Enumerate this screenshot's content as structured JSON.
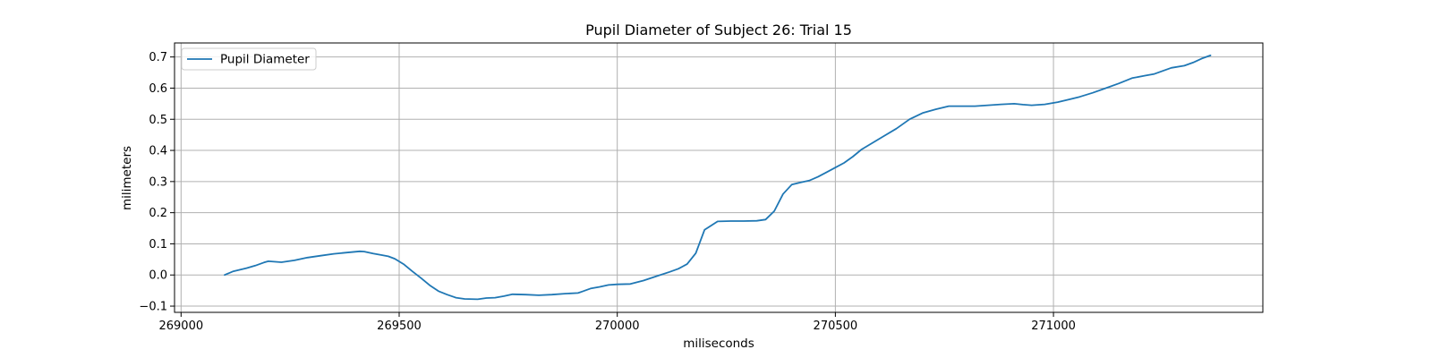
{
  "chart_data": {
    "type": "line",
    "title": "Pupil Diameter of Subject 26: Trial 15",
    "xlabel": "miliseconds",
    "ylabel": "milimeters",
    "xlim": [
      268985,
      271480
    ],
    "ylim": [
      -0.12,
      0.745
    ],
    "xticks": [
      269000,
      269500,
      270000,
      270500,
      271000
    ],
    "yticks": [
      -0.1,
      0.0,
      0.1,
      0.2,
      0.3,
      0.4,
      0.5,
      0.6,
      0.7
    ],
    "ytick_labels": [
      "−0.1",
      "0.0",
      "0.1",
      "0.2",
      "0.3",
      "0.4",
      "0.5",
      "0.6",
      "0.7"
    ],
    "grid": true,
    "legend_position": "upper-left",
    "colors": {
      "line": "#1f77b4",
      "grid": "#b0b0b0",
      "axes": "#000000"
    },
    "series": [
      {
        "name": "Pupil Diameter",
        "x": [
          269100,
          269120,
          269150,
          269170,
          269190,
          269200,
          269230,
          269260,
          269290,
          269320,
          269350,
          269380,
          269410,
          269420,
          269440,
          269460,
          269475,
          269490,
          269510,
          269530,
          269550,
          269570,
          269590,
          269610,
          269630,
          269650,
          269680,
          269700,
          269720,
          269740,
          269760,
          269790,
          269820,
          269850,
          269880,
          269910,
          269920,
          269940,
          269960,
          269980,
          270000,
          270030,
          270060,
          270090,
          270120,
          270140,
          270160,
          270180,
          270200,
          270230,
          270260,
          270290,
          270320,
          270340,
          270360,
          270380,
          270400,
          270420,
          270440,
          270460,
          270480,
          270500,
          270520,
          270540,
          270560,
          270580,
          270610,
          270640,
          270670,
          270700,
          270730,
          270760,
          270790,
          270820,
          270850,
          270880,
          270910,
          270930,
          270950,
          270980,
          271010,
          271040,
          271060,
          271090,
          271120,
          271150,
          271180,
          271210,
          271230,
          271250,
          271270,
          271300,
          271320,
          271340,
          271360
        ],
        "y": [
          0.0,
          0.012,
          0.022,
          0.03,
          0.04,
          0.044,
          0.041,
          0.047,
          0.056,
          0.062,
          0.068,
          0.072,
          0.076,
          0.075,
          0.069,
          0.064,
          0.06,
          0.052,
          0.035,
          0.012,
          -0.01,
          -0.033,
          -0.052,
          -0.063,
          -0.073,
          -0.077,
          -0.078,
          -0.074,
          -0.073,
          -0.068,
          -0.062,
          -0.063,
          -0.065,
          -0.063,
          -0.06,
          -0.058,
          -0.053,
          -0.043,
          -0.038,
          -0.032,
          -0.03,
          -0.029,
          -0.018,
          -0.004,
          0.01,
          0.02,
          0.035,
          0.07,
          0.145,
          0.172,
          0.173,
          0.173,
          0.174,
          0.178,
          0.205,
          0.26,
          0.29,
          0.297,
          0.303,
          0.315,
          0.33,
          0.345,
          0.36,
          0.38,
          0.403,
          0.42,
          0.445,
          0.47,
          0.5,
          0.52,
          0.532,
          0.542,
          0.542,
          0.542,
          0.545,
          0.548,
          0.55,
          0.547,
          0.545,
          0.548,
          0.555,
          0.565,
          0.572,
          0.585,
          0.6,
          0.615,
          0.632,
          0.64,
          0.645,
          0.655,
          0.665,
          0.672,
          0.682,
          0.695,
          0.705
        ]
      }
    ]
  }
}
